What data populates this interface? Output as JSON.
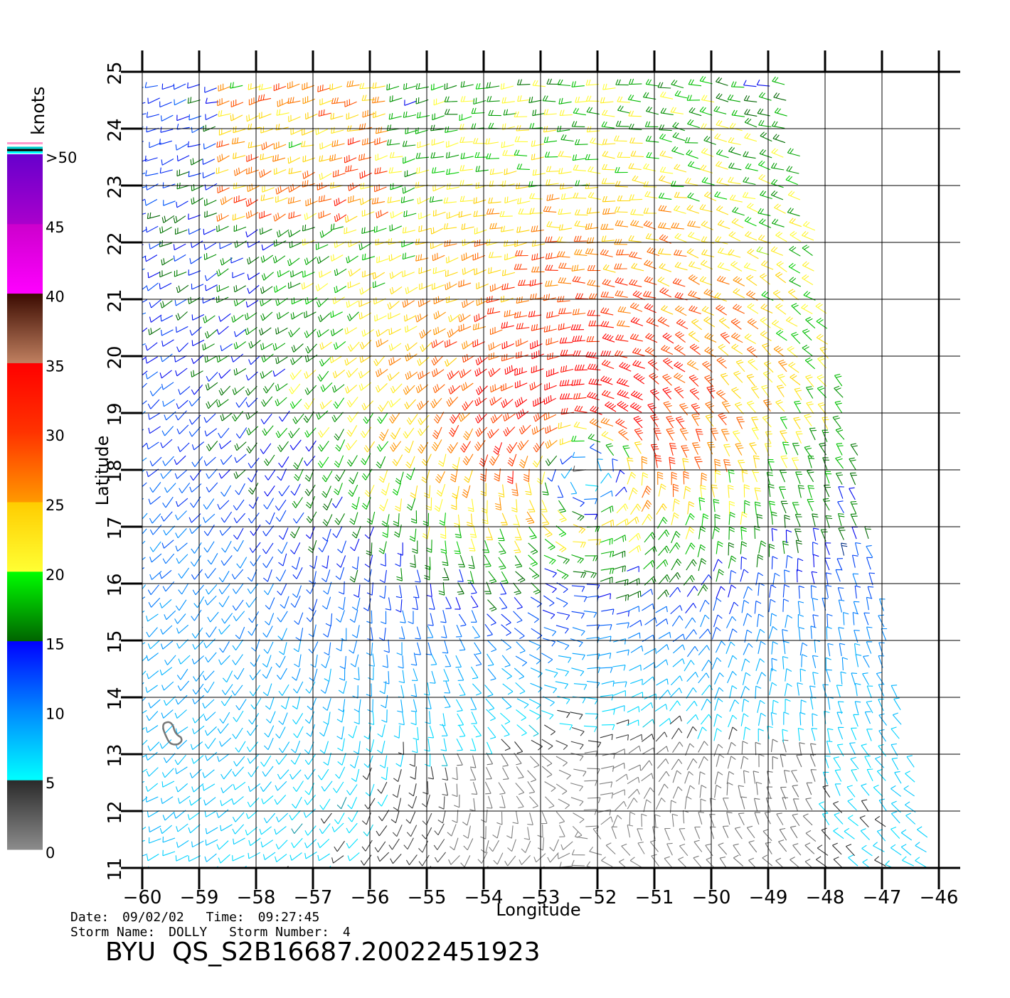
{
  "units_label": "knots",
  "colorbar": {
    "bands": [
      {
        "from": 0,
        "to": 5,
        "colors": [
          "#8c8c8c",
          "#2a2a2a"
        ]
      },
      {
        "from": 5,
        "to": 10,
        "colors": [
          "#00ffff",
          "#0088ff"
        ]
      },
      {
        "from": 10,
        "to": 15,
        "colors": [
          "#0088ff",
          "#0000ff"
        ]
      },
      {
        "from": 15,
        "to": 20,
        "colors": [
          "#006400",
          "#00ff00"
        ]
      },
      {
        "from": 20,
        "to": 25,
        "colors": [
          "#ffff33",
          "#ffcc00"
        ]
      },
      {
        "from": 25,
        "to": 30,
        "colors": [
          "#ff9900",
          "#ff3300"
        ]
      },
      {
        "from": 30,
        "to": 35,
        "colors": [
          "#ff3300",
          "#ff0000"
        ]
      },
      {
        "from": 35,
        "to": 40,
        "colors": [
          "#c08060",
          "#3a0a00"
        ]
      },
      {
        "from": 40,
        "to": 45,
        "colors": [
          "#ff00ff",
          "#cc00cc"
        ]
      },
      {
        "from": 45,
        "to": 50,
        "colors": [
          "#aa00cc",
          "#6600cc"
        ]
      }
    ],
    "top_stripes": [
      "#ff99cc",
      "#ffffff",
      "#00cccc",
      "#000000",
      "#00ffff"
    ],
    "labels": [
      {
        "value": 0,
        "text": "0"
      },
      {
        "value": 5,
        "text": "5"
      },
      {
        "value": 10,
        "text": "10"
      },
      {
        "value": 15,
        "text": "15"
      },
      {
        "value": 20,
        "text": "20"
      },
      {
        "value": 25,
        "text": "25"
      },
      {
        "value": 30,
        "text": "30"
      },
      {
        "value": 35,
        "text": "35"
      },
      {
        "value": 40,
        "text": "40"
      },
      {
        "value": 45,
        "text": "45"
      },
      {
        "value": 50,
        "text": ">50"
      }
    ]
  },
  "map": {
    "lon_range": [
      -60,
      -46
    ],
    "lat_range": [
      11,
      25
    ],
    "lon_ticks": [
      -60,
      -59,
      -58,
      -57,
      -56,
      -55,
      -54,
      -53,
      -52,
      -51,
      -50,
      -49,
      -48,
      -47,
      -46
    ],
    "lon_tick_labels": [
      "−60",
      "−59",
      "−58",
      "−57",
      "−56",
      "−55",
      "−54",
      "−53",
      "−52",
      "−51",
      "−50",
      "−49",
      "−48",
      "−47",
      "−46"
    ],
    "lat_ticks": [
      11,
      12,
      13,
      14,
      15,
      16,
      17,
      18,
      19,
      20,
      21,
      22,
      23,
      24,
      25
    ],
    "lat_tick_labels": [
      "11",
      "12",
      "13",
      "14",
      "15",
      "16",
      "17",
      "18",
      "19",
      "20",
      "21",
      "22",
      "23",
      "24",
      "25"
    ],
    "xlabel": "Longitude",
    "ylabel": "Latitude",
    "grid": true,
    "swath_east_edge": [
      [
        25,
        -48.7
      ],
      [
        11,
        -46.1
      ]
    ],
    "storm_center": {
      "lon": -52.2,
      "lat": 18.2
    },
    "island": {
      "name": "",
      "lon": -59.5,
      "lat": 13.2
    },
    "wind_max_knots": 35
  },
  "footer": {
    "date_label": "Date:",
    "date": "09/02/02",
    "time_label": "Time:",
    "time": "09:27:45",
    "storm_name_label": "Storm  Name:",
    "storm_name": "DOLLY",
    "storm_number_label": "Storm  Number:",
    "storm_number": "4",
    "product_id": "BYU  QS_S2B16687.20022451923"
  }
}
